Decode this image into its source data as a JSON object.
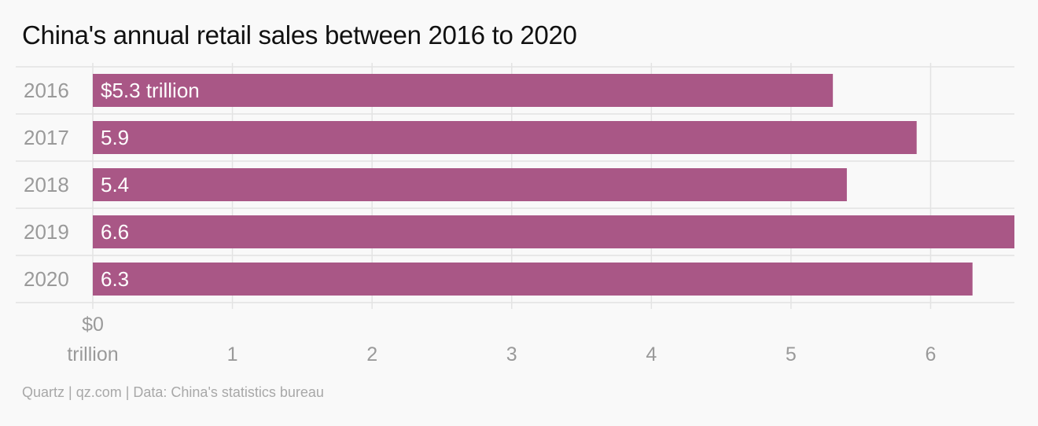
{
  "title": "China's annual retail sales between 2016 to 2020",
  "source": "Quartz | qz.com | Data: China's statistics bureau",
  "colors": {
    "bar": "#a95786",
    "grid": "#e3e3e3",
    "tick_text": "#9a9a9a",
    "bar_label": "#ffffff"
  },
  "chart_data": {
    "type": "bar",
    "orientation": "horizontal",
    "title": "China's annual retail sales between 2016 to 2020",
    "categories": [
      "2016",
      "2017",
      "2018",
      "2019",
      "2020"
    ],
    "values": [
      5.3,
      5.9,
      5.4,
      6.6,
      6.3
    ],
    "data_labels": [
      "$5.3 trillion",
      "5.9",
      "5.4",
      "6.6",
      "6.3"
    ],
    "unit": "trillion",
    "xlim": [
      0,
      6.6
    ],
    "x_ticks": [
      0,
      1,
      2,
      3,
      4,
      5,
      6
    ],
    "x_tick_labels": [
      "$0",
      "1",
      "2",
      "3",
      "4",
      "5",
      "6"
    ],
    "x_tick_sublabels": [
      "trillion",
      "",
      "",
      "",
      "",
      "",
      ""
    ],
    "grid": true,
    "legend": "none"
  }
}
